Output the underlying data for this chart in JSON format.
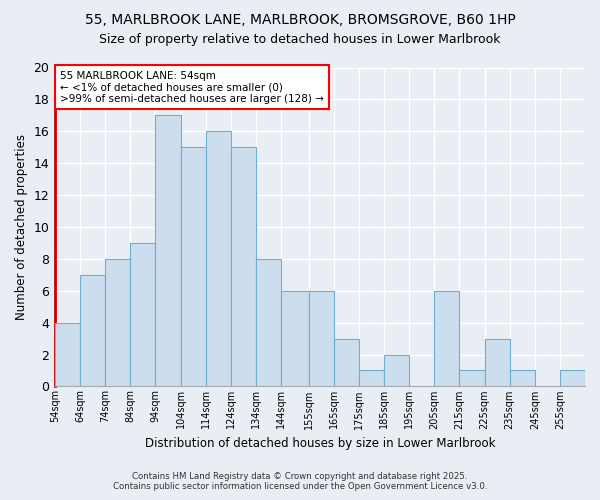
{
  "title1": "55, MARLBROOK LANE, MARLBROOK, BROMSGROVE, B60 1HP",
  "title2": "Size of property relative to detached houses in Lower Marlbrook",
  "xlabel": "Distribution of detached houses by size in Lower Marlbrook",
  "ylabel": "Number of detached properties",
  "bin_lefts": [
    54,
    64,
    74,
    84,
    94,
    104,
    114,
    124,
    134,
    144,
    155,
    165,
    175,
    185,
    195,
    205,
    215,
    225,
    235,
    245,
    255
  ],
  "bin_widths": [
    10,
    10,
    10,
    10,
    10,
    10,
    10,
    10,
    10,
    11,
    10,
    10,
    10,
    10,
    10,
    10,
    10,
    10,
    10,
    10,
    10
  ],
  "counts": [
    4,
    7,
    8,
    9,
    17,
    15,
    16,
    15,
    8,
    6,
    6,
    3,
    1,
    2,
    0,
    6,
    1,
    3,
    1,
    0,
    1
  ],
  "bar_color": "#ccdded",
  "bar_edge_color": "#6baed6",
  "annotation_text": "55 MARLBROOK LANE: 54sqm\n← <1% of detached houses are smaller (0)\n>99% of semi-detached houses are larger (128) →",
  "annotation_box_color": "white",
  "annotation_border_color": "red",
  "background_color": "#e8eef4",
  "grid_color": "#ffffff",
  "ylim": [
    0,
    20
  ],
  "yticks": [
    0,
    2,
    4,
    6,
    8,
    10,
    12,
    14,
    16,
    18,
    20
  ],
  "tick_labels": [
    "54sqm",
    "64sqm",
    "74sqm",
    "84sqm",
    "94sqm",
    "104sqm",
    "114sqm",
    "124sqm",
    "134sqm",
    "144sqm",
    "155sqm",
    "165sqm",
    "175sqm",
    "185sqm",
    "195sqm",
    "205sqm",
    "215sqm",
    "225sqm",
    "235sqm",
    "245sqm",
    "255sqm"
  ],
  "footer1": "Contains HM Land Registry data © Crown copyright and database right 2025.",
  "footer2": "Contains public sector information licensed under the Open Government Licence v3.0.",
  "red_line_color": "#cc0000",
  "spine_color": "#aaaaaa",
  "xlim_min": 54,
  "xlim_max": 265
}
